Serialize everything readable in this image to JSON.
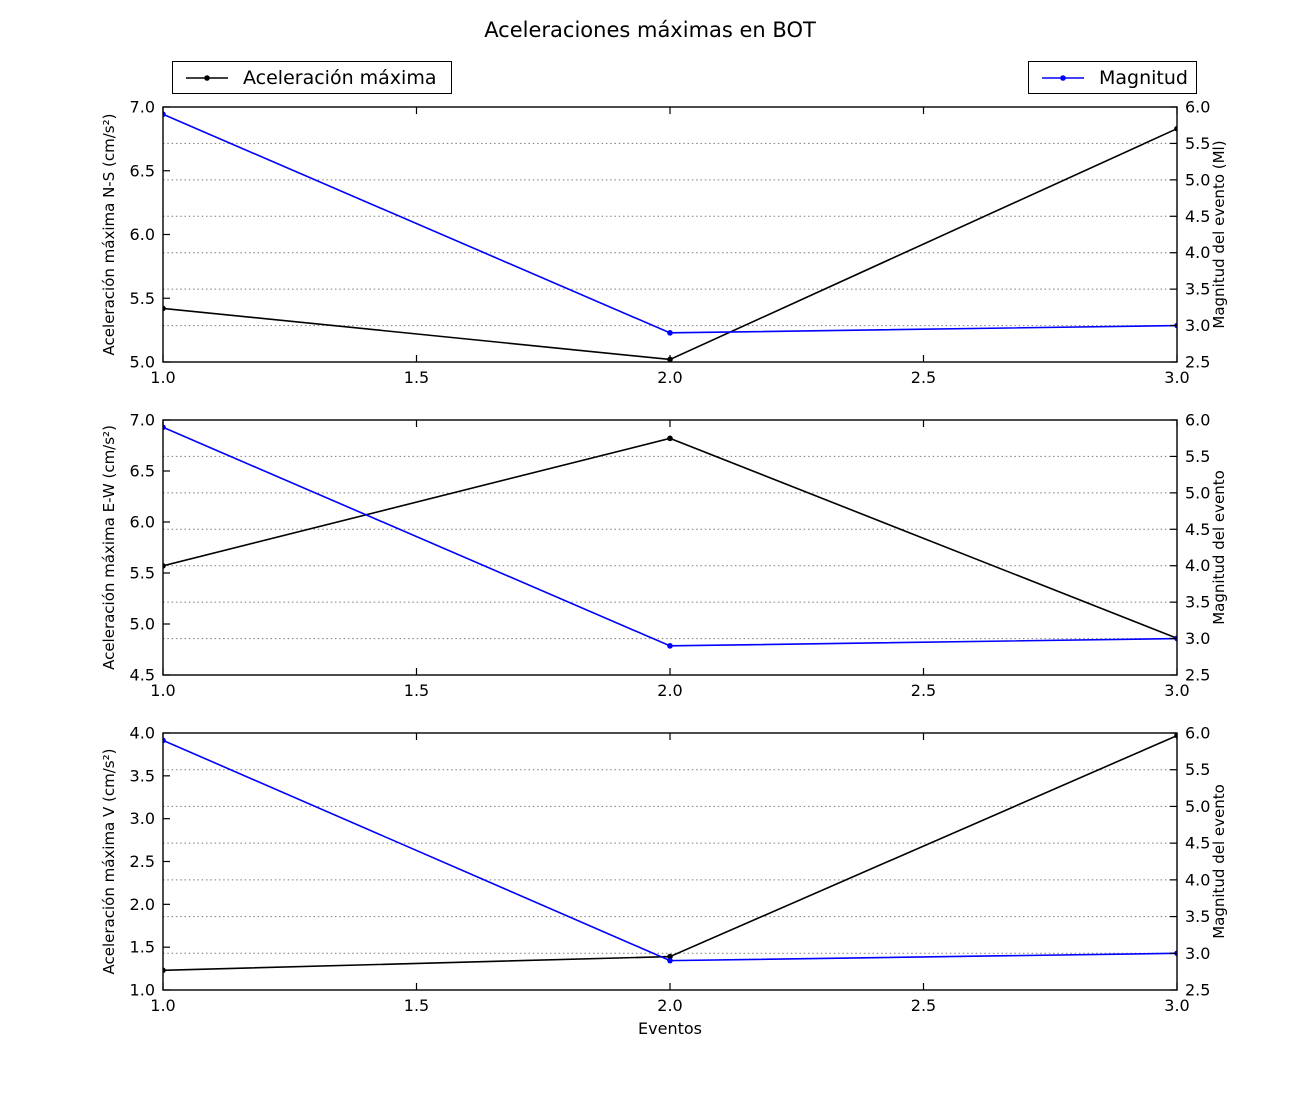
{
  "title": "Aceleraciones máximas en BOT",
  "legends": [
    {
      "label": "Aceleración máxima",
      "color": "#000000"
    },
    {
      "label": "Magnitud",
      "color": "#0000ff"
    }
  ],
  "colors": {
    "acceleration_series": "#000000",
    "magnitude_series": "#0000ff",
    "grid": "#7c7c7c",
    "axes": "#000000",
    "background": "#ffffff"
  },
  "chart_data": [
    {
      "type": "line",
      "x": [
        1.0,
        2.0,
        3.0
      ],
      "xlim": [
        1.0,
        3.0
      ],
      "xticks": [
        1.0,
        1.5,
        2.0,
        2.5,
        3.0
      ],
      "xlabel": "",
      "ylabel_left": "Aceleración máxima N-S (cm/s²)",
      "ylim_left": [
        5.0,
        7.0
      ],
      "yticks_left": [
        5.0,
        5.5,
        6.0,
        6.5,
        7.0
      ],
      "ylabel_right": "Magnitud del evento (Ml)",
      "ylim_right": [
        2.5,
        6.0
      ],
      "yticks_right": [
        2.5,
        3.0,
        3.5,
        4.0,
        4.5,
        5.0,
        5.5,
        6.0
      ],
      "grid": "horizontal-dotted-at-right-ticks",
      "series": [
        {
          "name": "Aceleración máxima",
          "key": "aceleracion-maxima",
          "axis": "left",
          "color": "#000000",
          "marker": "dot",
          "values": [
            5.42,
            5.02,
            6.83
          ]
        },
        {
          "name": "Magnitud",
          "key": "magnitud",
          "axis": "right",
          "color": "#0000ff",
          "marker": "dot",
          "values": [
            5.9,
            2.9,
            3.0
          ]
        }
      ]
    },
    {
      "type": "line",
      "x": [
        1.0,
        2.0,
        3.0
      ],
      "xlim": [
        1.0,
        3.0
      ],
      "xticks": [
        1.0,
        1.5,
        2.0,
        2.5,
        3.0
      ],
      "xlabel": "",
      "ylabel_left": "Aceleración máxima E-W (cm/s²)",
      "ylim_left": [
        4.5,
        7.0
      ],
      "yticks_left": [
        4.5,
        5.0,
        5.5,
        6.0,
        6.5,
        7.0
      ],
      "ylabel_right": "Magnitud del evento",
      "ylim_right": [
        2.5,
        6.0
      ],
      "yticks_right": [
        2.5,
        3.0,
        3.5,
        4.0,
        4.5,
        5.0,
        5.5,
        6.0
      ],
      "grid": "horizontal-dotted-at-right-ticks",
      "series": [
        {
          "name": "Aceleración máxima",
          "key": "aceleracion-maxima",
          "axis": "left",
          "color": "#000000",
          "marker": "dot",
          "values": [
            5.57,
            6.82,
            4.86
          ]
        },
        {
          "name": "Magnitud",
          "key": "magnitud",
          "axis": "right",
          "color": "#0000ff",
          "marker": "dot",
          "values": [
            5.9,
            2.9,
            3.0
          ]
        }
      ]
    },
    {
      "type": "line",
      "x": [
        1.0,
        2.0,
        3.0
      ],
      "xlim": [
        1.0,
        3.0
      ],
      "xticks": [
        1.0,
        1.5,
        2.0,
        2.5,
        3.0
      ],
      "xlabel": "Eventos",
      "ylabel_left": "Aceleración máxima V (cm/s²)",
      "ylim_left": [
        1.0,
        4.0
      ],
      "yticks_left": [
        1.0,
        1.5,
        2.0,
        2.5,
        3.0,
        3.5,
        4.0
      ],
      "ylabel_right": "Magnitud del evento",
      "ylim_right": [
        2.5,
        6.0
      ],
      "yticks_right": [
        2.5,
        3.0,
        3.5,
        4.0,
        4.5,
        5.0,
        5.5,
        6.0
      ],
      "grid": "horizontal-dotted-at-right-ticks",
      "series": [
        {
          "name": "Aceleración máxima",
          "key": "aceleracion-maxima",
          "axis": "left",
          "color": "#000000",
          "marker": "dot",
          "values": [
            1.23,
            1.39,
            3.97
          ]
        },
        {
          "name": "Magnitud",
          "key": "magnitud",
          "axis": "right",
          "color": "#0000ff",
          "marker": "dot",
          "values": [
            5.9,
            2.9,
            3.0
          ]
        }
      ]
    }
  ]
}
